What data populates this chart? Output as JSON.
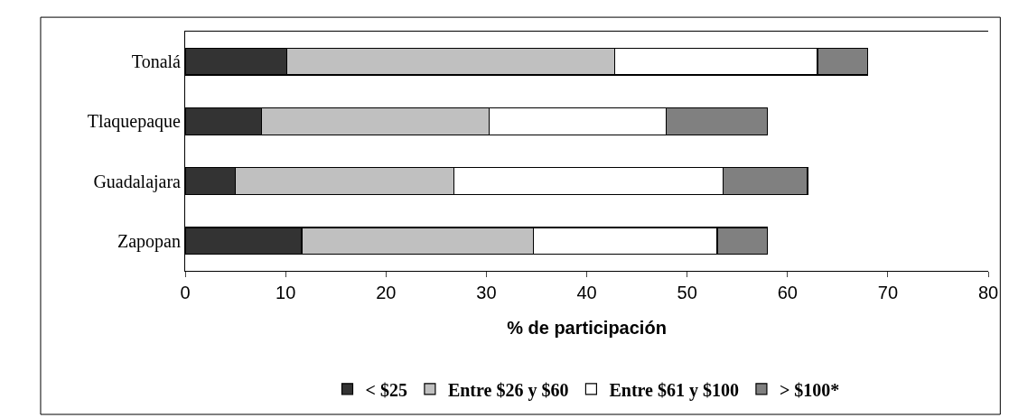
{
  "chart_data": {
    "type": "bar",
    "orientation": "horizontal",
    "stacked": true,
    "categories": [
      "Tonalá",
      "Tlaquepaque",
      "Guadalajara",
      "Zapopan"
    ],
    "series": [
      {
        "name": "< $25",
        "color": "#333333",
        "values": [
          10.1,
          7.6,
          5.0,
          11.6
        ]
      },
      {
        "name": "Entre $26 y $60",
        "color": "#c0c0c0",
        "values": [
          32.7,
          22.7,
          21.8,
          23.1
        ]
      },
      {
        "name": "Entre $61 y $100",
        "color": "#ffffff",
        "values": [
          20.2,
          17.6,
          26.8,
          18.3
        ]
      },
      {
        "name": "> $100*",
        "color": "#808080",
        "values": [
          5.0,
          10.1,
          8.4,
          5.0
        ]
      }
    ],
    "xlabel": "% de participación",
    "xlim": [
      0,
      80
    ],
    "xticks": [
      0,
      10,
      20,
      30,
      40,
      50,
      60,
      70,
      80
    ],
    "grid": false,
    "legend": "bottom"
  }
}
